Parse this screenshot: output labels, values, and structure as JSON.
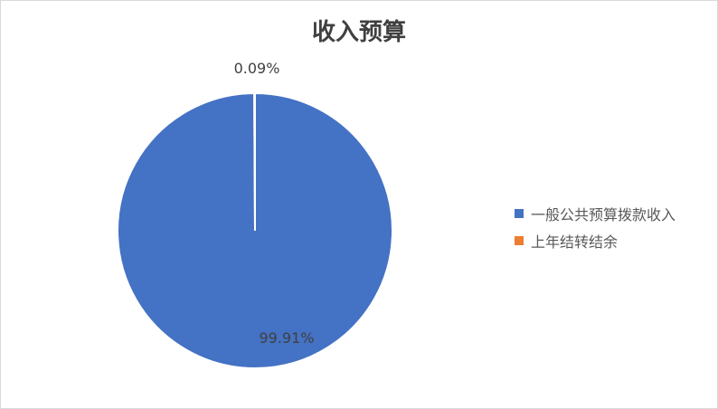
{
  "chart_data": {
    "type": "pie",
    "title": "收入预算",
    "categories": [
      "一般公共预算拨款收入",
      "上年结转结余"
    ],
    "values": [
      99.91,
      0.09
    ],
    "data_labels": [
      "99.91%",
      "0.09%"
    ],
    "colors": [
      "#4472C4",
      "#ED7D31"
    ],
    "legend_position": "right"
  }
}
